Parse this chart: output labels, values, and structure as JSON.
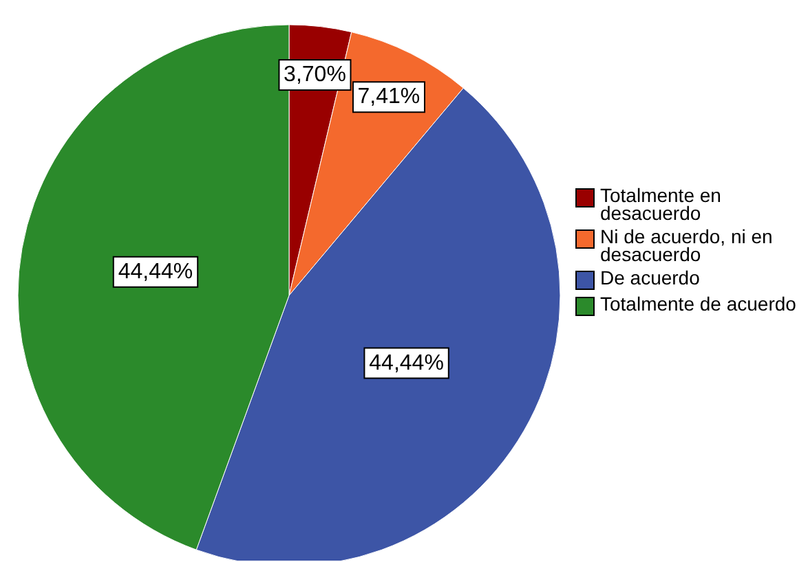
{
  "chart_data": {
    "type": "pie",
    "categories": [
      "Totalmente en desacuerdo",
      "Ni de acuerdo, ni en desacuerdo",
      "De acuerdo",
      "Totalmente de acuerdo"
    ],
    "values": [
      3.7,
      7.41,
      44.44,
      44.44
    ],
    "value_labels": [
      "3,70%",
      "7,41%",
      "44,44%",
      "44,44%"
    ],
    "colors": [
      "#990000",
      "#f4692d",
      "#3d55a6",
      "#2b8a2b"
    ],
    "legend": "right"
  }
}
